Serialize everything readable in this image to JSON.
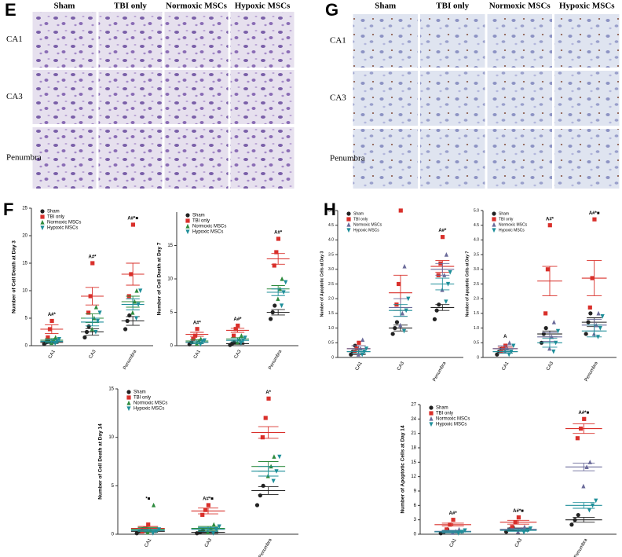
{
  "panels": [
    {
      "label": "E",
      "columns": [
        "Sham",
        "TBI only",
        "Normoxic MSCs",
        "Hypoxic MSCs"
      ],
      "rows": [
        "CA1",
        "CA3",
        "Penumbra"
      ]
    },
    {
      "label": "G",
      "columns": [
        "Sham",
        "TBI only",
        "Normoxic MSCs",
        "Hypoxic MSCs"
      ],
      "rows": [
        "CA1",
        "CA3",
        "Penumbra"
      ]
    }
  ],
  "chart_labels": [
    "F",
    "H"
  ],
  "chart_data": [
    {
      "type": "dot",
      "ylabel": "Number of Cell Death at Day 3",
      "categories": [
        "CA1",
        "CA3",
        "Penumbra"
      ],
      "ylim": [
        0,
        25
      ],
      "yticks": [
        0,
        5,
        10,
        15,
        20,
        25
      ],
      "legend": "upper left",
      "annotations": [
        "A#*",
        "A#*",
        "A#*■"
      ],
      "series": [
        {
          "name": "Sham",
          "color": "#222222",
          "marker": "circle",
          "values": [
            [
              0.3,
              0.6,
              0.9
            ],
            [
              1.5,
              2.5,
              3.5
            ],
            [
              3,
              4.5,
              5.5
            ]
          ],
          "mean": [
            0.6,
            2.5,
            4.5
          ],
          "sem": [
            0.2,
            0.6,
            0.8
          ]
        },
        {
          "name": "TBI only",
          "color": "#d9302b",
          "marker": "square",
          "values": [
            [
              1.5,
              3,
              4.5
            ],
            [
              6,
              9,
              15
            ],
            [
              9,
              13,
              22
            ]
          ],
          "mean": [
            3,
            9,
            13
          ],
          "sem": [
            0.8,
            1.6,
            2
          ]
        },
        {
          "name": "Normoxic MSCs",
          "color": "#2e8b3e",
          "marker": "up",
          "values": [
            [
              0.5,
              1,
              1.5
            ],
            [
              3,
              5,
              7
            ],
            [
              6,
              8,
              10
            ]
          ],
          "mean": [
            1,
            5,
            8
          ],
          "sem": [
            0.3,
            0.8,
            1
          ]
        },
        {
          "name": "Hypoxic MSCs",
          "color": "#1f8f9a",
          "marker": "down",
          "values": [
            [
              0.4,
              0.8,
              1.2
            ],
            [
              2.5,
              4.5,
              6
            ],
            [
              5,
              7.5,
              10
            ]
          ],
          "mean": [
            0.8,
            4.3,
            7.5
          ],
          "sem": [
            0.3,
            0.7,
            1
          ]
        }
      ]
    },
    {
      "type": "dot",
      "ylabel": "Number of Cell Death at Day 7",
      "categories": [
        "CA1",
        "CA3",
        "Penumbra"
      ],
      "ylim": [
        0,
        20
      ],
      "yticks": [
        0,
        5,
        10,
        15
      ],
      "legend": "upper left",
      "annotations": [
        "A#*",
        "A#*",
        "A#*"
      ],
      "series": [
        {
          "name": "Sham",
          "color": "#222222",
          "marker": "circle",
          "values": [
            [
              0.2,
              0.5,
              1
            ],
            [
              0.1,
              0.3,
              0.5
            ],
            [
              4,
              5,
              6
            ]
          ],
          "mean": [
            0.5,
            0.3,
            5
          ],
          "sem": [
            0.2,
            0.1,
            0.4
          ]
        },
        {
          "name": "TBI only",
          "color": "#d9302b",
          "marker": "square",
          "values": [
            [
              1,
              1.5,
              2.5
            ],
            [
              1.5,
              2.5,
              3
            ],
            [
              12,
              14,
              16
            ]
          ],
          "mean": [
            1.7,
            2.3,
            13
          ],
          "sem": [
            0.3,
            0.3,
            0.8
          ]
        },
        {
          "name": "Normoxic MSCs",
          "color": "#2e8b3e",
          "marker": "up",
          "values": [
            [
              0.3,
              0.7,
              1
            ],
            [
              0.5,
              1,
              1.5
            ],
            [
              7,
              8.5,
              10
            ]
          ],
          "mean": [
            0.7,
            1,
            8.5
          ],
          "sem": [
            0.2,
            0.2,
            0.5
          ]
        },
        {
          "name": "Hypoxic MSCs",
          "color": "#1f8f9a",
          "marker": "down",
          "values": [
            [
              0.2,
              0.6,
              0.8
            ],
            [
              0.4,
              0.8,
              1.2
            ],
            [
              6,
              8,
              9.5
            ]
          ],
          "mean": [
            0.5,
            0.8,
            8
          ],
          "sem": [
            0.2,
            0.2,
            0.5
          ]
        }
      ]
    },
    {
      "type": "dot",
      "ylabel": "Number of Cell Death at Day 14",
      "categories": [
        "CA1",
        "CA3",
        "Penumbra"
      ],
      "ylim": [
        0,
        15
      ],
      "yticks": [
        0,
        5,
        10,
        15
      ],
      "legend": "upper left",
      "annotations": [
        "*■",
        "A#*■",
        "A*"
      ],
      "series": [
        {
          "name": "Sham",
          "color": "#222222",
          "marker": "circle",
          "values": [
            [
              0.1,
              0.3,
              0.5
            ],
            [
              0.1,
              0.2,
              0.4
            ],
            [
              3,
              4,
              5
            ]
          ],
          "mean": [
            0.3,
            0.2,
            4.5
          ],
          "sem": [
            0.1,
            0.1,
            0.4
          ]
        },
        {
          "name": "TBI only",
          "color": "#d9302b",
          "marker": "square",
          "values": [
            [
              0.3,
              0.6,
              1
            ],
            [
              2,
              2.5,
              3
            ],
            [
              10,
              12,
              14
            ]
          ],
          "mean": [
            0.6,
            2.4,
            10.5
          ],
          "sem": [
            0.2,
            0.3,
            0.6
          ]
        },
        {
          "name": "Normoxic MSCs",
          "color": "#2e8b3e",
          "marker": "up",
          "values": [
            [
              0.2,
              0.4,
              3
            ],
            [
              0.2,
              0.6,
              1
            ],
            [
              6,
              7,
              8
            ]
          ],
          "mean": [
            0.5,
            0.6,
            7
          ],
          "sem": [
            0.2,
            0.2,
            0.5
          ]
        },
        {
          "name": "Hypoxic MSCs",
          "color": "#1f8f9a",
          "marker": "down",
          "values": [
            [
              0.1,
              0.3,
              0.5
            ],
            [
              0.1,
              0.5,
              0.8
            ],
            [
              5.5,
              6.5,
              8
            ]
          ],
          "mean": [
            0.4,
            0.5,
            6.5
          ],
          "sem": [
            0.1,
            0.2,
            0.5
          ]
        }
      ]
    },
    {
      "type": "dot",
      "ylabel": "Number of Apoptotic Cells at Day 3",
      "categories": [
        "CA1",
        "CA3",
        "Penumbra"
      ],
      "ylim": [
        0,
        5
      ],
      "yticks": [
        0,
        0.5,
        {
          "value": 1,
          "label": "1.0"
        },
        1.5,
        {
          "value": 2,
          "label": "2.0"
        },
        2.5,
        {
          "value": 3,
          "label": "3.0"
        },
        3.5,
        {
          "value": 4,
          "label": "4.0"
        },
        4.5,
        {
          "value": 5,
          "label": "5.0"
        }
      ],
      "legend": "upper left",
      "annotations": [
        null,
        null,
        "A#*"
      ],
      "series": [
        {
          "name": "Sham",
          "color": "#222222",
          "marker": "circle",
          "values": [
            [
              0.1,
              0.2,
              0.4
            ],
            [
              0.8,
              1,
              1.2
            ],
            [
              1.3,
              1.6,
              1.8
            ]
          ],
          "mean": [
            0.2,
            1,
            1.7
          ],
          "sem": [
            0.1,
            0.1,
            0.1
          ]
        },
        {
          "name": "TBI only",
          "color": "#d9302b",
          "marker": "square",
          "values": [
            [
              0.2,
              0.3,
              0.5
            ],
            [
              1.8,
              2.5,
              5
            ],
            [
              2.8,
              3.2,
              4.1
            ]
          ],
          "mean": [
            0.3,
            2.2,
            3.1
          ],
          "sem": [
            0.1,
            0.6,
            0.2
          ]
        },
        {
          "name": "Normoxic MSCs",
          "color": "#6b6b9a",
          "marker": "up",
          "values": [
            [
              0.1,
              0.3,
              0.6
            ],
            [
              1.1,
              1.5,
              3.1
            ],
            [
              2.3,
              2.8,
              3.5
            ]
          ],
          "mean": [
            0.3,
            1.7,
            3
          ],
          "sem": [
            0.1,
            0.3,
            0.2
          ]
        },
        {
          "name": "Hypoxic MSCs",
          "color": "#1f8f9a",
          "marker": "down",
          "values": [
            [
              0.1,
              0.2,
              0.3
            ],
            [
              0.9,
              1.6,
              2
            ],
            [
              1.9,
              2.5,
              2.9
            ]
          ],
          "mean": [
            0.2,
            1.6,
            2.5
          ],
          "sem": [
            0.05,
            0.2,
            0.2
          ]
        }
      ]
    },
    {
      "type": "dot",
      "ylabel": "Number of Apoptotic Cells at Day 7",
      "categories": [
        "CA1",
        "CA3",
        "Penumbra"
      ],
      "ylim": [
        0,
        5
      ],
      "yticks": [
        0,
        0.5,
        {
          "value": 1,
          "label": "1.0"
        },
        1.5,
        {
          "value": 2,
          "label": "2.0"
        },
        2.5,
        {
          "value": 3,
          "label": "3.0"
        },
        3.5,
        {
          "value": 4,
          "label": "4.0"
        },
        4.5,
        {
          "value": 5,
          "label": "5.0"
        }
      ],
      "legend": "upper left",
      "annotations": [
        "A",
        "A#*",
        "A#*■"
      ],
      "series": [
        {
          "name": "Sham",
          "color": "#222222",
          "marker": "circle",
          "values": [
            [
              0.1,
              0.2,
              0.3
            ],
            [
              0.5,
              0.8,
              1
            ],
            [
              0.8,
              1.2,
              1.5
            ]
          ],
          "mean": [
            0.2,
            0.8,
            1.2
          ],
          "sem": [
            0.05,
            0.1,
            0.15
          ]
        },
        {
          "name": "TBI only",
          "color": "#d9302b",
          "marker": "square",
          "values": [
            [
              0.2,
              0.3,
              0.4
            ],
            [
              1.5,
              3,
              4.5
            ],
            [
              1.7,
              2.7,
              4.7
            ]
          ],
          "mean": [
            0.3,
            2.6,
            2.7
          ],
          "sem": [
            0.05,
            0.5,
            0.6
          ]
        },
        {
          "name": "Normoxic MSCs",
          "color": "#6b6b9a",
          "marker": "up",
          "values": [
            [
              0.2,
              0.3,
              0.5
            ],
            [
              0.3,
              0.7,
              1.2
            ],
            [
              0.8,
              1.1,
              1.5
            ]
          ],
          "mean": [
            0.3,
            0.7,
            1.1
          ],
          "sem": [
            0.1,
            0.15,
            0.2
          ]
        },
        {
          "name": "Hypoxic MSCs",
          "color": "#1f8f9a",
          "marker": "down",
          "values": [
            [
              0.1,
              0.2,
              0.4
            ],
            [
              0.2,
              0.5,
              0.9
            ],
            [
              0.7,
              1,
              1.4
            ]
          ],
          "mean": [
            0.2,
            0.5,
            0.9
          ],
          "sem": [
            0.05,
            0.15,
            0.2
          ]
        }
      ]
    },
    {
      "type": "dot",
      "ylabel": "Number of Apoptotic Cells at Day 14",
      "categories": [
        "CA1",
        "CA3",
        "Penumbra"
      ],
      "ylim": [
        0,
        27
      ],
      "yticks": [
        0,
        3,
        6,
        9,
        12,
        15,
        18,
        21,
        24,
        27
      ],
      "legend": "upper left",
      "annotations": [
        "A#*",
        "A#*■",
        "A#*■"
      ],
      "series": [
        {
          "name": "Sham",
          "color": "#222222",
          "marker": "circle",
          "values": [
            [
              0.2,
              0.5,
              1
            ],
            [
              0.5,
              1,
              1.5
            ],
            [
              2,
              3,
              4
            ]
          ],
          "mean": [
            0.5,
            1,
            3
          ],
          "sem": [
            0.2,
            0.3,
            0.5
          ]
        },
        {
          "name": "TBI only",
          "color": "#d9302b",
          "marker": "square",
          "values": [
            [
              1,
              2,
              3
            ],
            [
              1.5,
              2.5,
              3.5
            ],
            [
              20,
              22,
              24
            ]
          ],
          "mean": [
            2,
            2.5,
            22
          ],
          "sem": [
            0.3,
            0.4,
            1
          ]
        },
        {
          "name": "Normoxic MSCs",
          "color": "#6b6b9a",
          "marker": "up",
          "values": [
            [
              0.3,
              0.6,
              1
            ],
            [
              0.5,
              1,
              1.5
            ],
            [
              10,
              14,
              15
            ]
          ],
          "mean": [
            0.6,
            1,
            14
          ],
          "sem": [
            0.2,
            0.2,
            0.8
          ]
        },
        {
          "name": "Hypoxic MSCs",
          "color": "#1f8f9a",
          "marker": "down",
          "values": [
            [
              0.2,
              0.5,
              0.8
            ],
            [
              0.4,
              0.8,
              1.2
            ],
            [
              5,
              6,
              7
            ]
          ],
          "mean": [
            0.5,
            0.8,
            6
          ],
          "sem": [
            0.2,
            0.2,
            0.6
          ]
        }
      ]
    }
  ]
}
